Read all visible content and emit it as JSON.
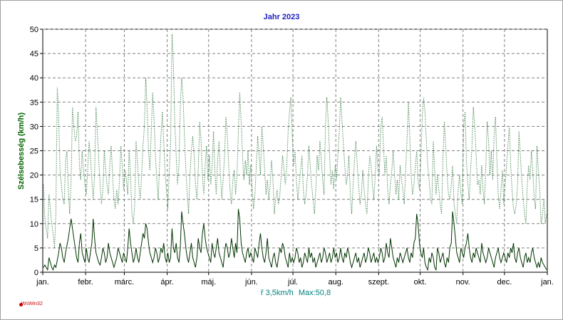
{
  "colors": {
    "title": "#2020c0",
    "ylabel": "#006600",
    "avg_series": "#003300",
    "max_series": "#1a6b2a",
    "stats": "#008080",
    "brand": "#cc0000",
    "grid": "#808080"
  },
  "chart_data": {
    "type": "line",
    "title": "Jahr 2023",
    "ylabel": "Szélsebesség  (km/h)",
    "xlabel": "",
    "ylim": [
      0,
      50
    ],
    "yticks": [
      0,
      5,
      10,
      15,
      20,
      25,
      30,
      35,
      40,
      45,
      50
    ],
    "grid": true,
    "x_tick_labels": [
      "jan.",
      "febr.",
      "márc.",
      "ápr.",
      "máj.",
      "jún.",
      "júl.",
      "aug.",
      "szept.",
      "okt.",
      "nov.",
      "dec.",
      "jan."
    ],
    "x_tick_days": [
      0,
      31,
      59,
      90,
      120,
      151,
      181,
      212,
      243,
      273,
      304,
      334,
      365
    ],
    "series": [
      {
        "style": "dotted",
        "values_by_month": [
          [
            18,
            11,
            9,
            7,
            16,
            13,
            10,
            8,
            5,
            12,
            38,
            32,
            21,
            18,
            15,
            14,
            23,
            25,
            17,
            12,
            19,
            34,
            30,
            27,
            28,
            33,
            22,
            19,
            25,
            21,
            18
          ],
          [
            16,
            21,
            27,
            24,
            19,
            15,
            20,
            34,
            29,
            23,
            18,
            14,
            17,
            25,
            21,
            18,
            16,
            22,
            26,
            20,
            15,
            13,
            17,
            14,
            19,
            26,
            22,
            17
          ],
          [
            21,
            19,
            16,
            25,
            20,
            12,
            10,
            14,
            27,
            23,
            18,
            15,
            20,
            26,
            30,
            40,
            34,
            25,
            21,
            29,
            37,
            32,
            24,
            19,
            15,
            22,
            28,
            33,
            27,
            20,
            17
          ],
          [
            13,
            21,
            26,
            49,
            43,
            31,
            24,
            18,
            22,
            34,
            40,
            36,
            28,
            21,
            16,
            12,
            20,
            25,
            28,
            24,
            18,
            15,
            21,
            31,
            27,
            20,
            16,
            22,
            26,
            19
          ],
          [
            24,
            18,
            22,
            29,
            21,
            16,
            23,
            27,
            20,
            15,
            19,
            24,
            32,
            28,
            22,
            17,
            14,
            19,
            21,
            16,
            20,
            29,
            37,
            31,
            24,
            19,
            23,
            20,
            25,
            18,
            22
          ],
          [
            17,
            13,
            16,
            22,
            28,
            24,
            20,
            30,
            26,
            21,
            16,
            19,
            15,
            18,
            23,
            19,
            12,
            15,
            17,
            14,
            16,
            20,
            24,
            21,
            18,
            22,
            29,
            33,
            36,
            28
          ],
          [
            22,
            25,
            19,
            15,
            18,
            21,
            24,
            17,
            14,
            16,
            20,
            26,
            22,
            18,
            15,
            12,
            17,
            24,
            21,
            27,
            23,
            19,
            16,
            30,
            36,
            31,
            24,
            18,
            21,
            17,
            22
          ],
          [
            19,
            24,
            29,
            36,
            31,
            26,
            22,
            18,
            20,
            24,
            16,
            12,
            18,
            23,
            27,
            22,
            18,
            14,
            16,
            21,
            17,
            14,
            12,
            19,
            24,
            22,
            18,
            15,
            20,
            26,
            21
          ],
          [
            20,
            30,
            32,
            26,
            20,
            24,
            17,
            14,
            18,
            21,
            25,
            20,
            16,
            19,
            15,
            22,
            19,
            17,
            14,
            21,
            27,
            35,
            28,
            20,
            16,
            18,
            22,
            25,
            19,
            17
          ],
          [
            23,
            32,
            36,
            33,
            27,
            22,
            19,
            15,
            14,
            27,
            21,
            16,
            20,
            17,
            14,
            12,
            24,
            31,
            26,
            20,
            16,
            15,
            18,
            22,
            14,
            12,
            10,
            17,
            20,
            16,
            14
          ],
          [
            30,
            33,
            23,
            18,
            15,
            21,
            26,
            34,
            30,
            24,
            18,
            19,
            16,
            22,
            17,
            14,
            22,
            31,
            27,
            20,
            25,
            19,
            28,
            32,
            23,
            16,
            13,
            17,
            21,
            14
          ],
          [
            18,
            22,
            26,
            30,
            22,
            17,
            13,
            12,
            14,
            18,
            29,
            24,
            19,
            15,
            12,
            10,
            18,
            22,
            19,
            25,
            21,
            15,
            13,
            26,
            21,
            17,
            10,
            12,
            15,
            10,
            12
          ]
        ]
      },
      {
        "style": "solid",
        "values_by_month": [
          [
            1,
            1.5,
            1,
            0.5,
            3,
            2,
            1,
            0.5,
            1.5,
            1,
            2.5,
            4,
            6,
            5,
            3,
            2,
            4,
            5.5,
            7,
            9,
            11,
            9,
            7,
            5,
            3,
            2,
            6,
            8,
            4,
            3,
            2
          ],
          [
            5,
            3,
            2,
            4,
            6,
            11,
            7,
            4,
            3,
            2,
            1.5,
            3,
            5,
            4,
            2,
            3,
            6,
            4,
            3,
            2,
            1,
            2,
            3,
            5,
            4,
            3,
            2,
            4
          ],
          [
            3,
            2,
            5,
            9,
            6,
            4,
            2,
            3,
            5,
            3,
            2,
            4,
            6,
            8,
            7,
            10,
            9,
            6,
            4,
            3,
            2,
            3,
            5,
            4,
            2,
            3,
            5,
            4,
            6,
            3,
            2
          ],
          [
            4,
            2,
            3,
            9,
            5,
            4,
            6,
            3,
            2,
            5,
            12.5,
            10,
            8,
            5,
            3,
            2,
            4,
            6,
            3,
            2,
            1,
            3,
            7,
            5,
            4,
            8,
            10,
            7,
            5,
            4
          ],
          [
            3,
            2,
            6,
            4,
            3,
            5,
            7,
            4,
            3,
            2,
            1,
            4,
            6,
            5,
            3,
            4,
            7,
            5,
            3,
            6,
            4,
            13,
            11,
            6,
            4,
            3,
            2,
            4,
            5,
            3,
            4
          ],
          [
            3,
            2,
            5,
            4,
            3,
            6,
            8,
            5,
            3,
            2,
            4,
            7,
            3,
            2,
            1,
            3,
            4,
            2,
            1,
            3,
            5,
            4,
            6,
            5,
            3,
            2,
            1,
            4,
            2,
            3
          ],
          [
            2,
            3,
            5,
            4,
            2,
            3,
            1,
            2,
            4,
            3,
            2,
            5,
            3,
            4,
            2,
            3,
            1,
            2,
            3,
            4,
            2,
            3,
            5,
            4,
            2,
            3,
            4,
            2,
            3,
            5,
            3
          ],
          [
            4,
            2,
            3,
            5,
            3,
            2,
            4,
            3,
            5,
            4,
            2,
            1,
            2,
            3,
            4,
            2,
            3,
            1,
            2,
            3,
            4,
            2,
            3,
            5,
            4,
            2,
            3,
            4,
            2,
            3,
            2
          ],
          [
            3,
            5,
            4,
            2,
            3,
            6,
            4,
            3,
            7,
            5,
            3,
            2,
            1,
            3,
            2,
            4,
            3,
            2,
            3,
            4,
            5,
            3,
            2,
            4,
            3,
            6,
            7,
            12,
            10,
            6
          ],
          [
            4,
            3,
            5,
            2,
            1,
            0.5,
            3,
            2,
            4,
            3,
            1,
            0.5,
            5,
            4,
            2,
            3,
            4,
            2,
            1,
            3,
            2,
            5,
            6,
            12.5,
            10,
            7,
            4,
            3,
            2,
            5,
            4
          ],
          [
            3,
            5,
            6,
            8,
            5,
            3,
            2,
            4,
            3,
            5,
            4,
            3,
            2,
            6,
            4,
            3,
            2,
            3,
            5,
            4,
            3,
            2,
            1,
            3,
            4,
            5,
            3,
            2,
            3,
            4
          ],
          [
            3,
            2,
            4,
            3,
            5,
            4,
            6,
            3,
            2,
            4,
            5,
            3,
            2,
            1,
            3,
            4,
            2,
            3,
            2,
            4,
            5,
            3,
            2,
            1,
            2,
            1,
            3,
            2,
            1.5,
            1,
            0.5
          ]
        ]
      }
    ]
  },
  "stats": {
    "avg": "ř 3,5km/h",
    "max": "Max:50,8"
  },
  "brand": "WsWin32"
}
